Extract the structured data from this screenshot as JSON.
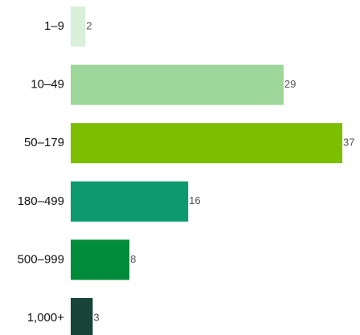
{
  "chart_data": {
    "type": "bar",
    "orientation": "horizontal",
    "categories": [
      "1–9",
      "10–49",
      "50–179",
      "180–499",
      "500–999",
      "1,000+"
    ],
    "values": [
      2,
      29,
      37,
      16,
      8,
      3
    ],
    "colors": [
      "#d9f0d9",
      "#9dd79a",
      "#7dbe00",
      "#0c9a6e",
      "#008c3a",
      "#17453a"
    ],
    "xlim": [
      0,
      37
    ],
    "grid": false,
    "legend": "none",
    "data_labels": true
  }
}
